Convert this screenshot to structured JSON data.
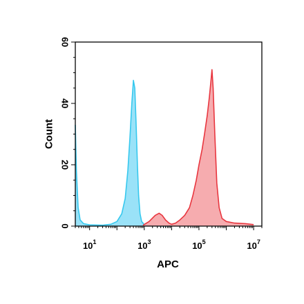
{
  "chart_data": {
    "type": "area",
    "title": "",
    "xlabel": "APC",
    "ylabel": "Count",
    "x_scale": "log",
    "xlim": [
      3,
      20000000
    ],
    "ylim": [
      0,
      60
    ],
    "x_ticks": [
      {
        "base": "10",
        "exp": "1",
        "value": 10
      },
      {
        "base": "10",
        "exp": "3",
        "value": 1000
      },
      {
        "base": "10",
        "exp": "5",
        "value": 100000
      },
      {
        "base": "10",
        "exp": "7",
        "value": 10000000
      }
    ],
    "y_ticks": [
      {
        "label": "0",
        "value": 0
      },
      {
        "label": "20",
        "value": 20
      },
      {
        "label": "40",
        "value": 40
      },
      {
        "label": "60",
        "value": 60
      }
    ],
    "grid": false,
    "legend": "none",
    "series": [
      {
        "color": "#36c8ee",
        "fill": "#8fdff7",
        "x": [
          3,
          3.3,
          3.8,
          4.5,
          6,
          10,
          30,
          60,
          100,
          150,
          200,
          250,
          300,
          350,
          400,
          450,
          500,
          560,
          620,
          700,
          800,
          1000,
          1300,
          1800,
          2500,
          4000,
          10000
        ],
        "y": [
          33,
          18,
          6,
          2,
          0.8,
          0.4,
          0.3,
          0.6,
          1.5,
          4,
          9,
          18,
          29,
          40,
          47.5,
          45,
          34,
          20,
          10,
          4,
          1.5,
          0.5,
          0.2,
          0.1,
          0.1,
          0,
          0
        ]
      },
      {
        "color": "#e8363f",
        "fill": "#f5a3a6",
        "x": [
          900,
          1500,
          2500,
          3500,
          4500,
          6000,
          8000,
          10000,
          14000,
          20000,
          30000,
          45000,
          60000,
          80000,
          100000,
          130000,
          160000,
          200000,
          240000,
          280000,
          300000,
          330000,
          380000,
          450000,
          550000,
          700000,
          1000000,
          2000000,
          5000000,
          10000000
        ],
        "y": [
          0.3,
          1.5,
          3.5,
          4.2,
          3.5,
          2,
          1,
          0.6,
          1,
          2,
          3.5,
          6,
          10,
          15,
          20,
          25,
          30,
          36,
          42,
          48,
          51,
          45,
          30,
          14,
          6,
          2.5,
          1.5,
          1,
          0.8,
          0.5
        ]
      }
    ]
  }
}
